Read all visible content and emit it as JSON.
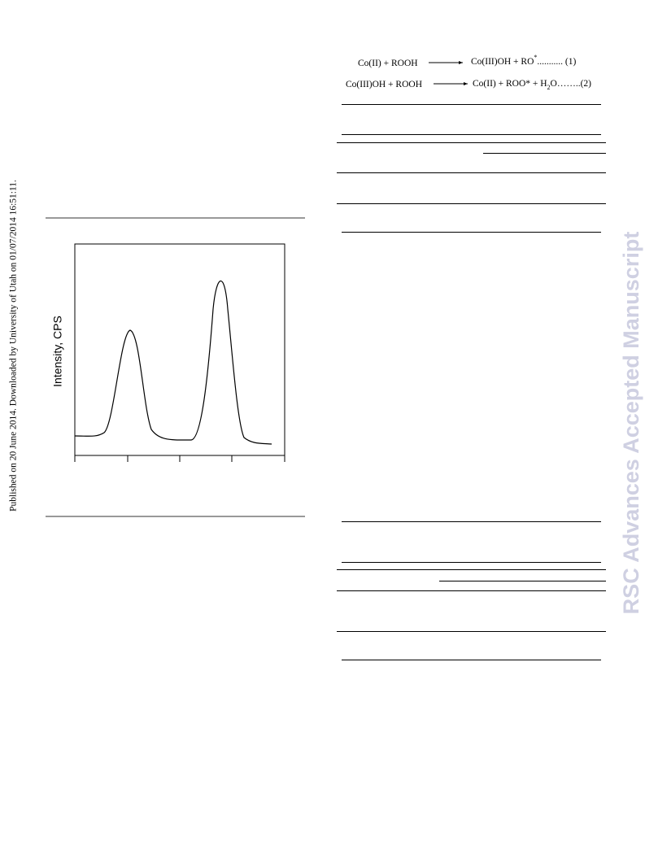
{
  "side_note": "Published on 20 June 2014. Downloaded by University of Utah on 01/07/2014 16:51:11.",
  "watermark": "RSC Advances Accepted Manuscript",
  "equations": [
    {
      "left": "Co(II) + ROOH",
      "right": [
        "Co(III)OH + RO",
        "*",
        "........... (1)"
      ]
    },
    {
      "left": "Co(III)OH + ROOH",
      "right": [
        "Co(II) + ROO* + H",
        "2",
        "O……..(2)"
      ]
    }
  ],
  "figure": {
    "y_axis_label": "Intensity, CPS"
  }
}
